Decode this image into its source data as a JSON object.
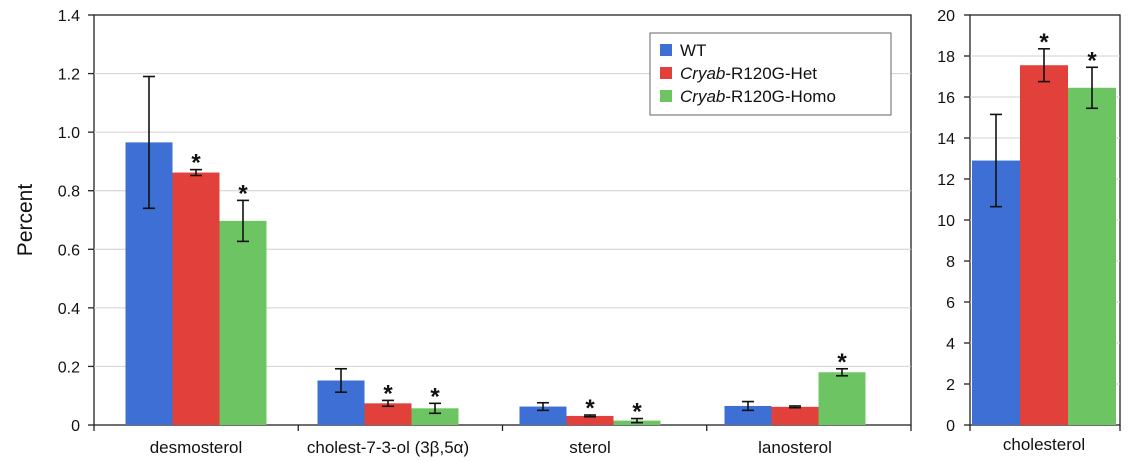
{
  "colors": {
    "wt": "#3d6fd4",
    "het": "#e2403a",
    "homo": "#6cc462",
    "axis": "#222222"
  },
  "legend": {
    "items": [
      {
        "prefix": "",
        "label": "WT",
        "color_key": "wt"
      },
      {
        "prefix": "Cryab",
        "label": "-R120G-Het",
        "color_key": "het"
      },
      {
        "prefix": "Cryab",
        "label": "-R120G-Homo",
        "color_key": "homo"
      }
    ]
  },
  "chart_data": [
    {
      "type": "bar",
      "ylabel": "Percent",
      "ylim": [
        0,
        1.4
      ],
      "yticks": [
        "0",
        "0.2",
        "0.4",
        "0.6",
        "0.8",
        "1.0",
        "1.2",
        "1.4"
      ],
      "categories": [
        "desmosterol",
        "cholest-7-3-ol (3β,5α)",
        "sterol",
        "lanosterol"
      ],
      "series": [
        {
          "name": "WT",
          "values": [
            0.965,
            0.152,
            0.063,
            0.065
          ],
          "errors": [
            0.225,
            0.04,
            0.013,
            0.015
          ]
        },
        {
          "name": "Cryab-R120G-Het",
          "values": [
            0.862,
            0.074,
            0.031,
            0.062
          ],
          "errors": [
            0.01,
            0.01,
            0.003,
            0.003
          ]
        },
        {
          "name": "Cryab-R120G-Homo",
          "values": [
            0.697,
            0.057,
            0.015,
            0.18
          ],
          "errors": [
            0.07,
            0.017,
            0.007,
            0.012
          ]
        }
      ],
      "significance": [
        [
          false,
          true,
          true
        ],
        [
          false,
          true,
          true
        ],
        [
          false,
          true,
          true
        ],
        [
          false,
          false,
          true
        ]
      ],
      "grid": true,
      "legend": "top-right"
    },
    {
      "type": "bar",
      "ylabel": "",
      "ylim": [
        0,
        20
      ],
      "yticks": [
        "0",
        "2",
        "4",
        "6",
        "8",
        "10",
        "12",
        "14",
        "16",
        "18",
        "20"
      ],
      "categories": [
        "cholesterol"
      ],
      "series": [
        {
          "name": "WT",
          "values": [
            12.9
          ],
          "errors": [
            2.25
          ]
        },
        {
          "name": "Cryab-R120G-Het",
          "values": [
            17.55
          ],
          "errors": [
            0.8
          ]
        },
        {
          "name": "Cryab-R120G-Homo",
          "values": [
            16.45
          ],
          "errors": [
            1.0
          ]
        }
      ],
      "significance": [
        [
          false,
          true,
          true
        ]
      ],
      "grid": true
    }
  ]
}
